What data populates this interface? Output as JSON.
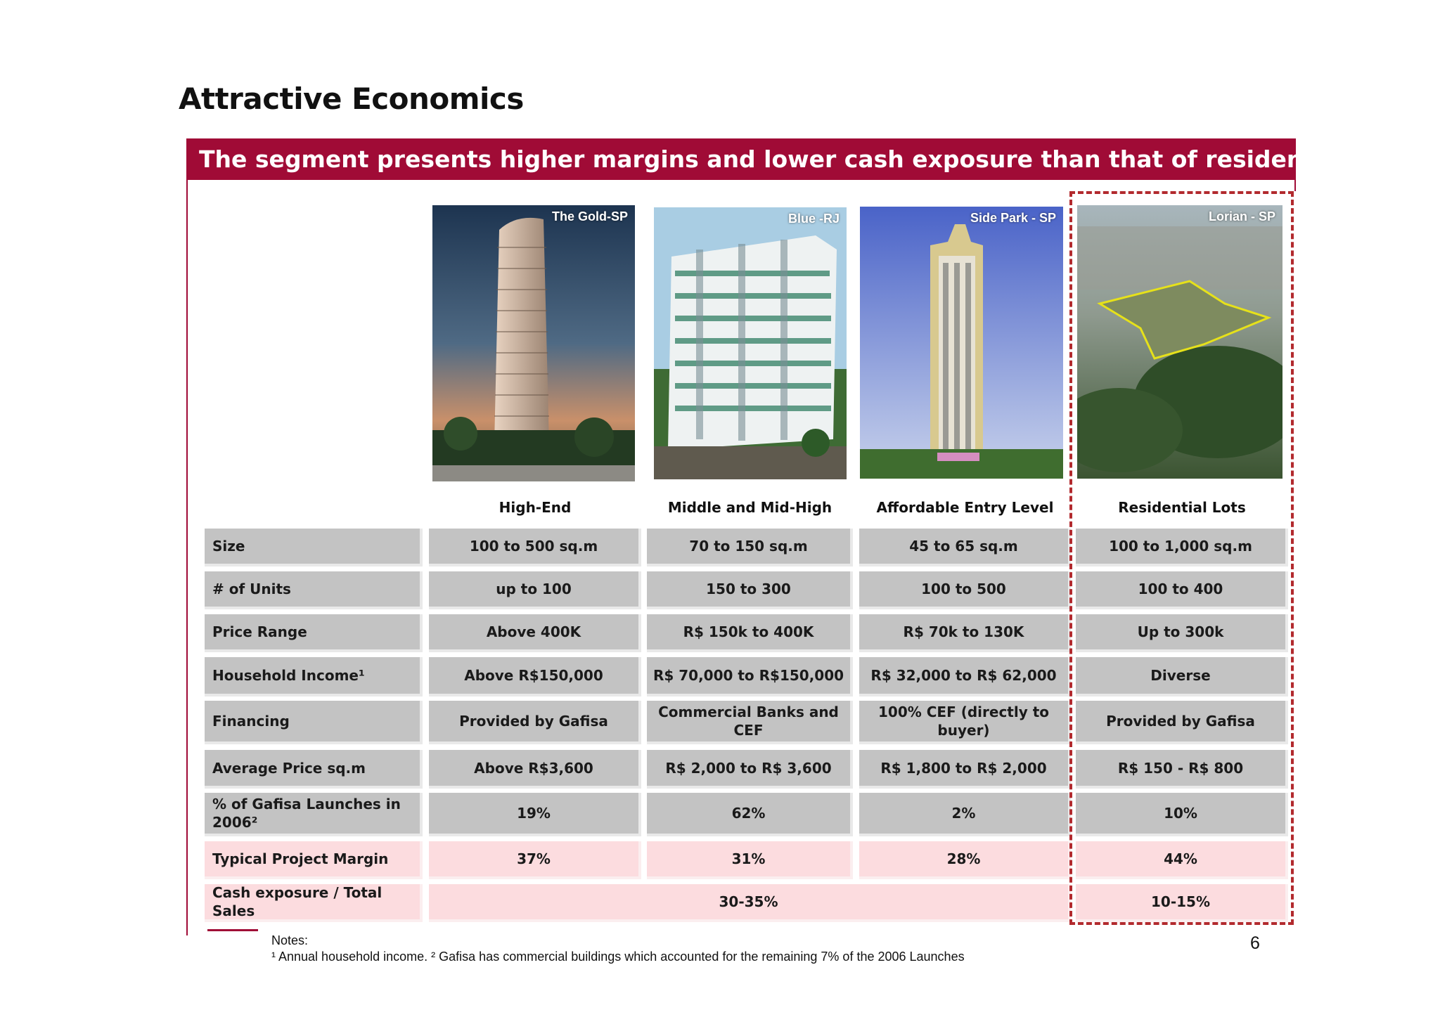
{
  "page": {
    "title": "Attractive Economics",
    "banner": "The segment presents higher margins and lower cash exposure than that of residential buildings",
    "page_number": "6"
  },
  "photos": [
    {
      "label": "The Gold-SP"
    },
    {
      "label": "Blue -RJ"
    },
    {
      "label": "Side Park - SP"
    },
    {
      "label": "Lorian - SP"
    }
  ],
  "segments": [
    "High-End",
    "Middle and Mid-High",
    "Affordable Entry Level",
    "Residential Lots"
  ],
  "rows": [
    {
      "label": "Size",
      "values": [
        "100 to 500 sq.m",
        "70 to 150 sq.m",
        "45 to 65 sq.m",
        "100 to 1,000 sq.m"
      ]
    },
    {
      "label": "# of Units",
      "values": [
        "up to 100",
        "150 to 300",
        "100 to 500",
        "100 to 400"
      ]
    },
    {
      "label": "Price Range",
      "values": [
        "Above 400K",
        "R$ 150k to 400K",
        "R$ 70k to 130K",
        "Up to 300k"
      ]
    },
    {
      "label": "Household Income¹",
      "values": [
        "Above R$150,000",
        "R$ 70,000 to R$150,000",
        "R$ 32,000 to R$ 62,000",
        "Diverse"
      ]
    },
    {
      "label": "Financing",
      "values": [
        "Provided by Gafisa",
        "Commercial Banks and CEF",
        "100% CEF (directly to buyer)",
        "Provided by Gafisa"
      ]
    },
    {
      "label": "Average Price sq.m",
      "values": [
        "Above R$3,600",
        "R$ 2,000 to R$ 3,600",
        "R$ 1,800 to R$ 2,000",
        "R$ 150 - R$ 800"
      ]
    },
    {
      "label": "% of Gafisa Launches in 2006²",
      "values": [
        "19%",
        "62%",
        "2%",
        "10%"
      ]
    },
    {
      "label": "Typical Project Margin",
      "values": [
        "37%",
        "31%",
        "28%",
        "44%"
      ]
    }
  ],
  "cash_row": {
    "label": "Cash exposure / Total Sales",
    "buildings_value": "30-35%",
    "lots_value": "10-15%"
  },
  "notes": {
    "title": "Notes:",
    "body": "¹ Annual household income. ² Gafisa has commercial buildings which accounted for the remaining 7% of the 2006 Launches"
  },
  "colors": {
    "accent": "#a00b36",
    "cell_gray": "#c3c3c3",
    "cell_pink": "#fcdcdf",
    "dash": "#b22a2e"
  }
}
